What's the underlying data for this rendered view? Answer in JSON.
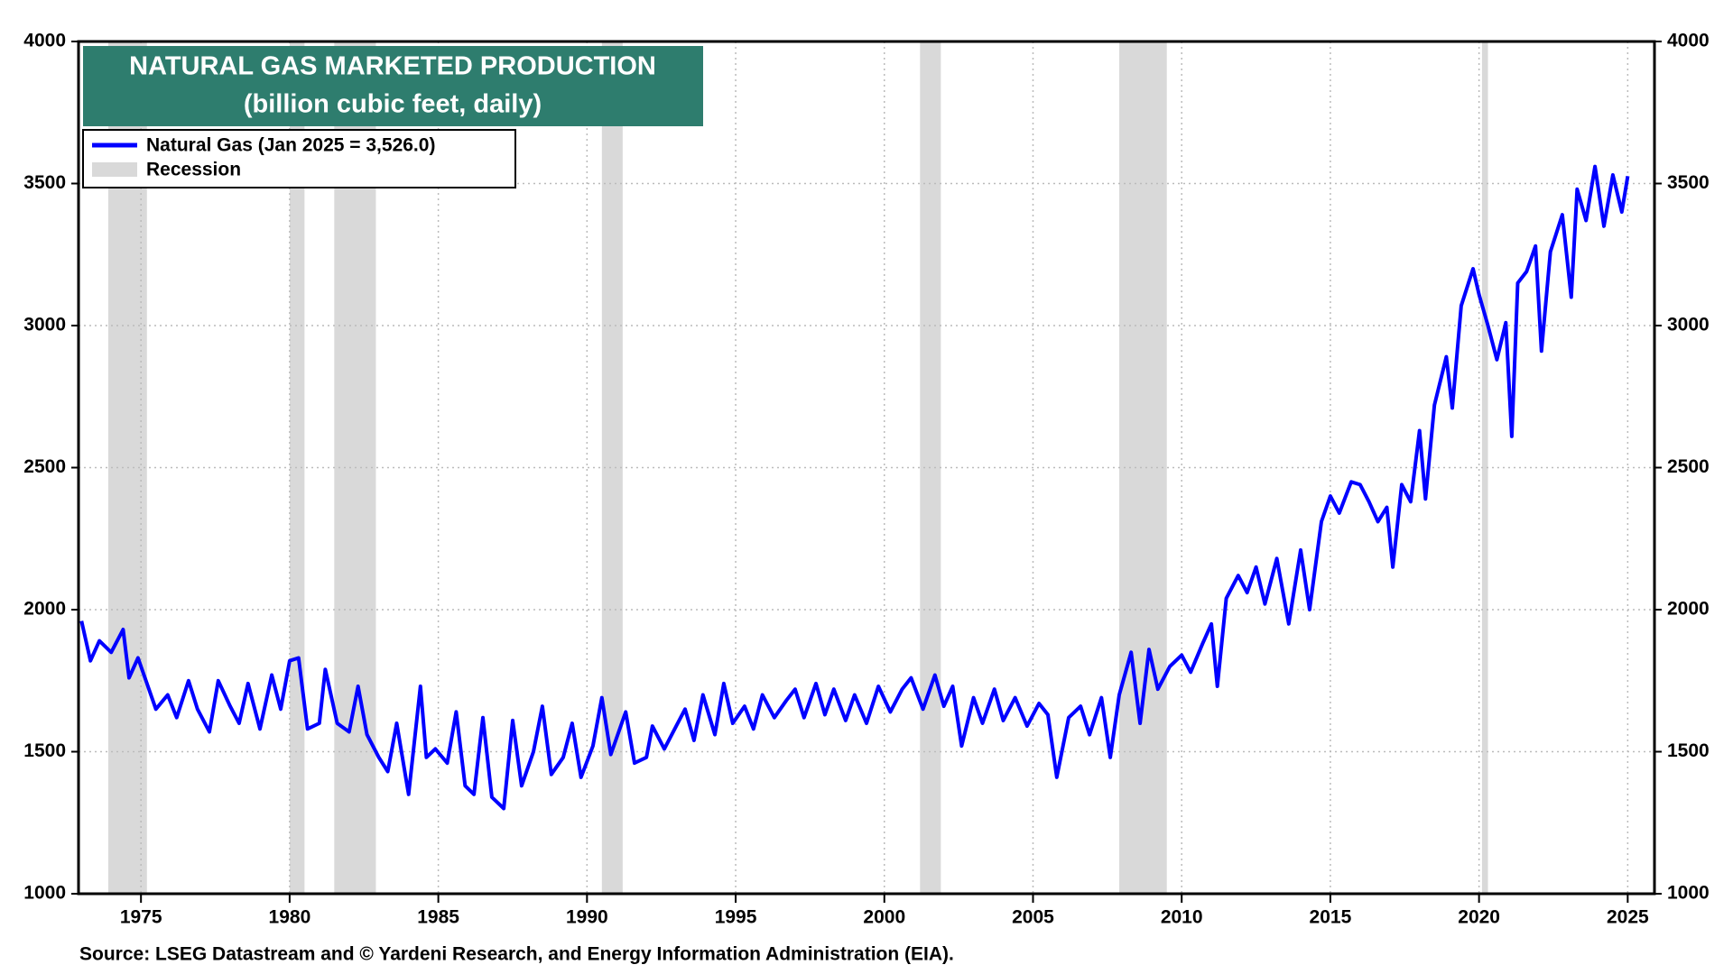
{
  "chart_data": {
    "type": "line",
    "title": "NATURAL GAS  MARKETED PRODUCTION",
    "subtitle": "(billion cubic feet, daily)",
    "source": "Source: LSEG Datastream and © Yardeni Research, and  Energy Information Administration (EIA).",
    "xlim": [
      1972.9,
      2025.9
    ],
    "xticks": [
      1975,
      1980,
      1985,
      1990,
      1995,
      2000,
      2005,
      2010,
      2015,
      2020,
      2025
    ],
    "ylim": [
      1000,
      4000
    ],
    "yticks": [
      1000,
      1500,
      2000,
      2500,
      3000,
      3500,
      4000
    ],
    "grid": true,
    "recession": {
      "name": "Recession",
      "color": "#d9d9d9",
      "periods": [
        [
          1973.9,
          1975.2
        ],
        [
          1980.0,
          1980.5
        ],
        [
          1981.5,
          1982.9
        ],
        [
          1990.5,
          1991.2
        ],
        [
          2001.2,
          2001.9
        ],
        [
          2007.9,
          2009.5
        ],
        [
          2020.1,
          2020.3
        ]
      ]
    },
    "x": [
      1973.0,
      1973.3,
      1973.6,
      1974.0,
      1974.4,
      1974.6,
      1974.9,
      1975.2,
      1975.5,
      1975.9,
      1976.2,
      1976.6,
      1976.9,
      1977.3,
      1977.6,
      1978.0,
      1978.3,
      1978.6,
      1979.0,
      1979.4,
      1979.7,
      1980.0,
      1980.3,
      1980.6,
      1981.0,
      1981.2,
      1981.6,
      1982.0,
      1982.3,
      1982.6,
      1983.0,
      1983.3,
      1983.6,
      1984.0,
      1984.4,
      1984.6,
      1984.9,
      1985.3,
      1985.6,
      1985.9,
      1986.2,
      1986.5,
      1986.8,
      1987.2,
      1987.5,
      1987.8,
      1988.2,
      1988.5,
      1988.8,
      1989.2,
      1989.5,
      1989.8,
      1990.2,
      1990.5,
      1990.8,
      1991.3,
      1991.6,
      1992.0,
      1992.2,
      1992.6,
      1993.0,
      1993.3,
      1993.6,
      1993.9,
      1994.3,
      1994.6,
      1994.9,
      1995.3,
      1995.6,
      1995.9,
      1996.3,
      1996.7,
      1997.0,
      1997.3,
      1997.7,
      1998.0,
      1998.3,
      1998.7,
      1999.0,
      1999.4,
      1999.8,
      2000.2,
      2000.6,
      2000.9,
      2001.3,
      2001.7,
      2002.0,
      2002.3,
      2002.6,
      2003.0,
      2003.3,
      2003.7,
      2004.0,
      2004.4,
      2004.8,
      2005.2,
      2005.5,
      2005.8,
      2006.2,
      2006.6,
      2006.9,
      2007.3,
      2007.6,
      2007.9,
      2008.3,
      2008.6,
      2008.9,
      2009.2,
      2009.6,
      2010.0,
      2010.3,
      2010.7,
      2011.0,
      2011.2,
      2011.5,
      2011.9,
      2012.2,
      2012.5,
      2012.8,
      2013.2,
      2013.6,
      2014.0,
      2014.3,
      2014.7,
      2015.0,
      2015.3,
      2015.7,
      2016.0,
      2016.3,
      2016.6,
      2016.9,
      2017.1,
      2017.4,
      2017.7,
      2018.0,
      2018.2,
      2018.5,
      2018.9,
      2019.1,
      2019.4,
      2019.8,
      2020.0,
      2020.3,
      2020.6,
      2020.9,
      2021.1,
      2021.3,
      2021.6,
      2021.9,
      2022.1,
      2022.4,
      2022.8,
      2023.1,
      2023.3,
      2023.6,
      2023.9,
      2024.2,
      2024.5,
      2024.8,
      2025.0
    ],
    "series": [
      {
        "name": "Natural Gas (Jan 2025 = 3,526.0)",
        "color": "#0000ff",
        "values": [
          1960,
          1820,
          1890,
          1850,
          1930,
          1760,
          1830,
          1740,
          1650,
          1700,
          1620,
          1750,
          1650,
          1570,
          1750,
          1660,
          1600,
          1740,
          1580,
          1770,
          1650,
          1820,
          1830,
          1580,
          1600,
          1790,
          1600,
          1570,
          1730,
          1560,
          1480,
          1430,
          1600,
          1350,
          1730,
          1480,
          1510,
          1460,
          1640,
          1380,
          1350,
          1620,
          1340,
          1300,
          1610,
          1380,
          1500,
          1660,
          1420,
          1480,
          1600,
          1410,
          1520,
          1690,
          1490,
          1640,
          1460,
          1480,
          1590,
          1510,
          1590,
          1650,
          1540,
          1700,
          1560,
          1740,
          1600,
          1660,
          1580,
          1700,
          1620,
          1680,
          1720,
          1620,
          1740,
          1630,
          1720,
          1610,
          1700,
          1600,
          1730,
          1640,
          1720,
          1760,
          1650,
          1770,
          1660,
          1730,
          1520,
          1690,
          1600,
          1720,
          1610,
          1690,
          1590,
          1670,
          1630,
          1410,
          1620,
          1660,
          1560,
          1690,
          1480,
          1700,
          1850,
          1600,
          1860,
          1720,
          1800,
          1840,
          1780,
          1880,
          1950,
          1730,
          2040,
          2120,
          2060,
          2150,
          2020,
          2180,
          1950,
          2210,
          2000,
          2310,
          2400,
          2340,
          2450,
          2440,
          2380,
          2310,
          2360,
          2150,
          2440,
          2380,
          2630,
          2390,
          2720,
          2890,
          2710,
          3070,
          3200,
          3110,
          3000,
          2880,
          3010,
          2610,
          3150,
          3190,
          3280,
          2910,
          3260,
          3390,
          3100,
          3480,
          3370,
          3560,
          3350,
          3530,
          3400,
          3526
        ]
      }
    ]
  }
}
